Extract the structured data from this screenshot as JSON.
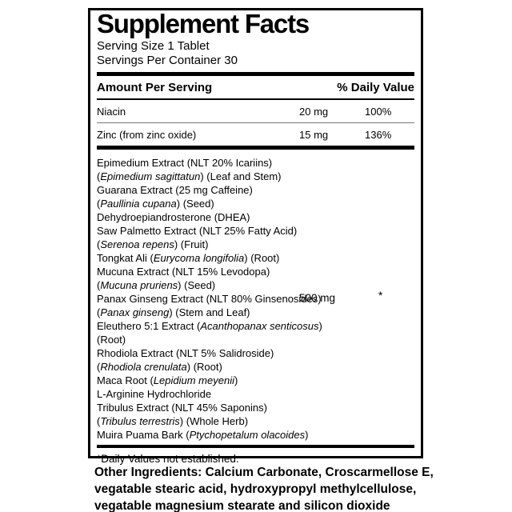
{
  "colors": {
    "text": "#000000",
    "background": "#ffffff",
    "rule": "#000000",
    "light_rule": "#777777"
  },
  "label": {
    "title": "Supplement Facts",
    "serving_size": "Serving Size 1 Tablet",
    "servings_per_container": "Servings Per Container 30",
    "columns": {
      "amount_header": "Amount Per Serving",
      "dv_header": "% Daily Value"
    },
    "nutrients": [
      {
        "name": "Niacin",
        "amount": "20 mg",
        "dv": "100%"
      },
      {
        "name": "Zinc (from zinc oxide)",
        "amount": "15 mg",
        "dv": "136%"
      }
    ],
    "blend": {
      "amount": "500 mg",
      "dv": "*",
      "lines": [
        [
          {
            "t": "Epimedium Extract (NLT 20% Icariins)",
            "i": false
          }
        ],
        [
          {
            "t": "(",
            "i": false
          },
          {
            "t": "Epimedium sagittatun",
            "i": true
          },
          {
            "t": ") (Leaf and Stem)",
            "i": false
          }
        ],
        [
          {
            "t": "Guarana Extract (25 mg Caffeine)",
            "i": false
          }
        ],
        [
          {
            "t": "(",
            "i": false
          },
          {
            "t": "Paullinia cupana",
            "i": true
          },
          {
            "t": ")  (Seed)",
            "i": false
          }
        ],
        [
          {
            "t": "Dehydroepiandrosterone (DHEA)",
            "i": false
          }
        ],
        [
          {
            "t": "Saw Palmetto Extract (NLT 25% Fatty Acid)",
            "i": false
          }
        ],
        [
          {
            "t": "(",
            "i": false
          },
          {
            "t": "Serenoa repens",
            "i": true
          },
          {
            "t": ") (Fruit)",
            "i": false
          }
        ],
        [
          {
            "t": "Tongkat Ali (",
            "i": false
          },
          {
            "t": "Eurycoma longifolia",
            "i": true
          },
          {
            "t": ") (Root)",
            "i": false
          }
        ],
        [
          {
            "t": "Mucuna Extract (NLT 15% Levodopa)",
            "i": false
          }
        ],
        [
          {
            "t": "(",
            "i": false
          },
          {
            "t": "Mucuna pruriens",
            "i": true
          },
          {
            "t": ") (Seed)",
            "i": false
          }
        ],
        [
          {
            "t": "Panax Ginseng Extract (NLT 80% Ginsenosides)",
            "i": false
          }
        ],
        [
          {
            "t": "(",
            "i": false
          },
          {
            "t": "Panax ginseng",
            "i": true
          },
          {
            "t": ") (Stem and Leaf)",
            "i": false
          }
        ],
        [
          {
            "t": "Eleuthero 5:1 Extract (",
            "i": false
          },
          {
            "t": "Acanthopanax senticosus",
            "i": true
          },
          {
            "t": ")",
            "i": false
          }
        ],
        [
          {
            "t": "(Root)",
            "i": false
          }
        ],
        [
          {
            "t": "Rhodiola Extract (NLT 5% Salidroside)",
            "i": false
          }
        ],
        [
          {
            "t": "(",
            "i": false
          },
          {
            "t": "Rhodiola crenulata",
            "i": true
          },
          {
            "t": ") (Root)",
            "i": false
          }
        ],
        [
          {
            "t": "Maca Root (",
            "i": false
          },
          {
            "t": "Lepidium meyenii",
            "i": true
          },
          {
            "t": ")",
            "i": false
          }
        ],
        [
          {
            "t": "L-Arginine Hydrochloride",
            "i": false
          }
        ],
        [
          {
            "t": "Tribulus Extract (NLT 45% Saponins)",
            "i": false
          }
        ],
        [
          {
            "t": "(",
            "i": false
          },
          {
            "t": "Tribulus terrestris",
            "i": true
          },
          {
            "t": ") (Whole Herb)",
            "i": false
          }
        ],
        [
          {
            "t": "Muira Puama Bark (",
            "i": false
          },
          {
            "t": "Ptychopetalum olacoides",
            "i": true
          },
          {
            "t": ")",
            "i": false
          }
        ]
      ]
    },
    "footnote": "*Daily Values not established."
  },
  "other_ingredients": {
    "lines": [
      "Other Ingredients: Calcium Carbonate, Croscarmellose E,",
      "vegatable stearic acid, hydroxypropyl methylcellulose,",
      "vegatable magnesium stearate and silicon dioxide"
    ]
  }
}
